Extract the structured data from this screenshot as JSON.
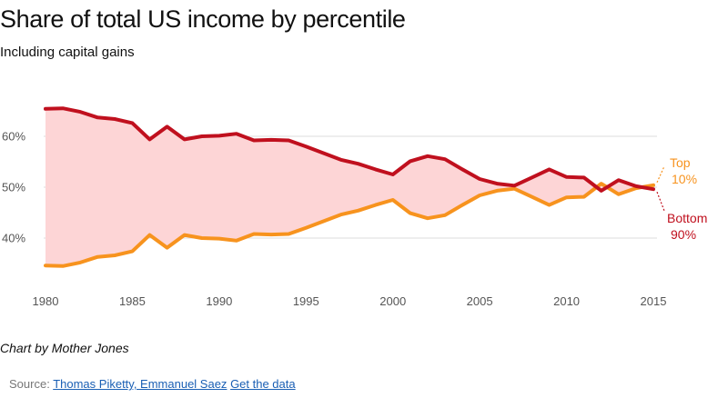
{
  "header": {
    "title": "Share of total US income by percentile",
    "subtitle": "Including capital gains"
  },
  "footer": {
    "credit": "Chart by Mother Jones",
    "source_prefix": "Source:",
    "source_link": "Thomas Piketty, Emmanuel Saez",
    "data_link": "Get the data"
  },
  "colors": {
    "bottom90": "#c0101e",
    "top10": "#f7931e",
    "fill": "#fdd5d6",
    "grid": "#dddddd"
  },
  "chart_data": {
    "type": "line",
    "title": "Share of total US income by percentile",
    "subtitle": "Including capital gains",
    "xlim": [
      1980,
      2015
    ],
    "ylim": [
      30,
      70
    ],
    "x_ticks": [
      1980,
      1985,
      1990,
      1995,
      2000,
      2005,
      2010,
      2015
    ],
    "y_ticks": [
      40,
      50,
      60
    ],
    "y_tick_labels": [
      "40%",
      "50%",
      "60%"
    ],
    "grid": true,
    "x": [
      1980,
      1981,
      1982,
      1983,
      1984,
      1985,
      1986,
      1987,
      1988,
      1989,
      1990,
      1991,
      1992,
      1993,
      1994,
      1995,
      1996,
      1997,
      1998,
      1999,
      2000,
      2001,
      2002,
      2003,
      2004,
      2005,
      2006,
      2007,
      2008,
      2009,
      2010,
      2011,
      2012,
      2013,
      2014,
      2015
    ],
    "series": [
      {
        "name_lines": [
          "Bottom",
          "90%"
        ],
        "color": "#c0101e",
        "values": [
          65.4,
          65.5,
          64.8,
          63.7,
          63.4,
          62.6,
          59.4,
          61.9,
          59.4,
          60.0,
          60.1,
          60.5,
          59.2,
          59.3,
          59.2,
          58.0,
          56.7,
          55.4,
          54.6,
          53.5,
          52.5,
          55.1,
          56.1,
          55.5,
          53.5,
          51.6,
          50.7,
          50.3,
          51.9,
          53.5,
          52.0,
          51.9,
          49.3,
          51.4,
          50.2,
          49.6
        ]
      },
      {
        "name_lines": [
          "Top",
          "10%"
        ],
        "color": "#f7931e",
        "values": [
          34.6,
          34.5,
          35.2,
          36.3,
          36.6,
          37.4,
          40.6,
          38.1,
          40.6,
          40.0,
          39.9,
          39.5,
          40.8,
          40.7,
          40.8,
          42.0,
          43.3,
          44.6,
          45.4,
          46.5,
          47.5,
          44.9,
          43.9,
          44.5,
          46.5,
          48.4,
          49.3,
          49.7,
          48.1,
          46.5,
          48.0,
          48.1,
          50.7,
          48.6,
          49.8,
          50.4
        ]
      }
    ]
  }
}
